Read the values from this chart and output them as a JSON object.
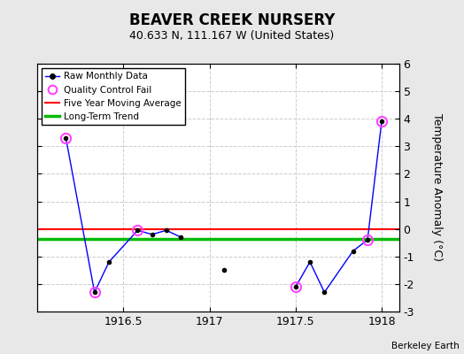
{
  "title": "BEAVER CREEK NURSERY",
  "subtitle": "40.633 N, 111.167 W (United States)",
  "ylabel": "Temperature Anomaly (°C)",
  "credit": "Berkeley Earth",
  "xlim": [
    1916.0,
    1918.1
  ],
  "ylim": [
    -3,
    6
  ],
  "yticks": [
    -3,
    -2,
    -1,
    0,
    1,
    2,
    3,
    4,
    5,
    6
  ],
  "xticks": [
    1916.5,
    1917.0,
    1917.5,
    1918.0
  ],
  "xticklabels": [
    "1916.5",
    "1917",
    "1917.5",
    "1918"
  ],
  "raw_x": [
    1916.167,
    1916.333,
    1916.417,
    1916.583,
    1916.667,
    1916.75,
    1916.833,
    1917.083,
    1917.5,
    1917.583,
    1917.667,
    1917.833,
    1917.917,
    1917.999
  ],
  "raw_y": [
    3.3,
    -2.3,
    -1.2,
    -0.05,
    -0.2,
    -0.05,
    -0.3,
    -1.5,
    -2.1,
    -1.2,
    -2.3,
    -0.8,
    -0.4,
    3.9
  ],
  "connected_segments": [
    [
      0,
      1,
      2,
      3,
      4,
      5,
      6
    ],
    [
      8,
      9,
      10,
      11,
      12,
      13
    ]
  ],
  "qc_fail_indices": [
    0,
    1,
    3,
    8,
    12,
    13
  ],
  "isolated_indices": [
    7
  ],
  "moving_avg_y": 0.0,
  "trend_y": -0.35,
  "bg_color": "#e8e8e8",
  "plot_bg_color": "#ffffff",
  "line_color": "#0000ff",
  "dot_color": "#000000",
  "qc_color": "#ff44ff",
  "moving_avg_color": "#ff0000",
  "trend_color": "#00bb00",
  "grid_color": "#cccccc"
}
